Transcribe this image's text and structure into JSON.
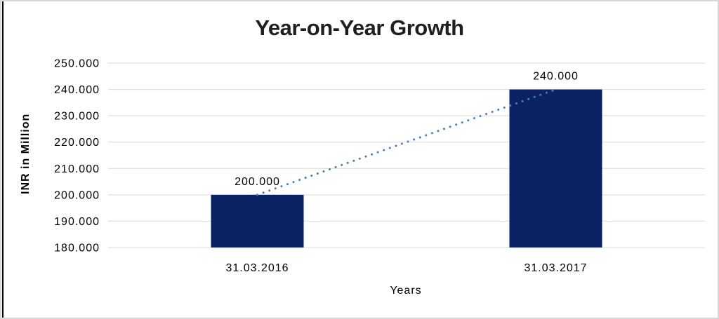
{
  "window": {
    "background_color": "#ffffff",
    "border_color": "#d9d9d9",
    "left_accent_line_color": "#000000"
  },
  "chart_data": {
    "type": "bar",
    "title": "Year-on-Year Growth",
    "xlabel": "Years",
    "ylabel": "INR in Million",
    "categories": [
      "31.03.2016",
      "31.03.2017"
    ],
    "values": [
      200,
      240
    ],
    "value_labels": [
      "200.000",
      "240.000"
    ],
    "ylim": [
      180,
      250
    ],
    "yticks": [
      180,
      190,
      200,
      210,
      220,
      230,
      240,
      250
    ],
    "ytick_labels": [
      "180.000",
      "190.000",
      "200.000",
      "210.000",
      "220.000",
      "230.000",
      "240.000",
      "250.000"
    ],
    "grid": true,
    "legend": "none",
    "bar_color": "#0a2263",
    "grid_color": "#d9d9d9",
    "text_color": "#000000",
    "trendline": {
      "style": "dotted",
      "color": "#4a7ebb",
      "from_category_index": 0,
      "from_value": 200,
      "to_category_index": 1,
      "to_value": 240
    }
  }
}
